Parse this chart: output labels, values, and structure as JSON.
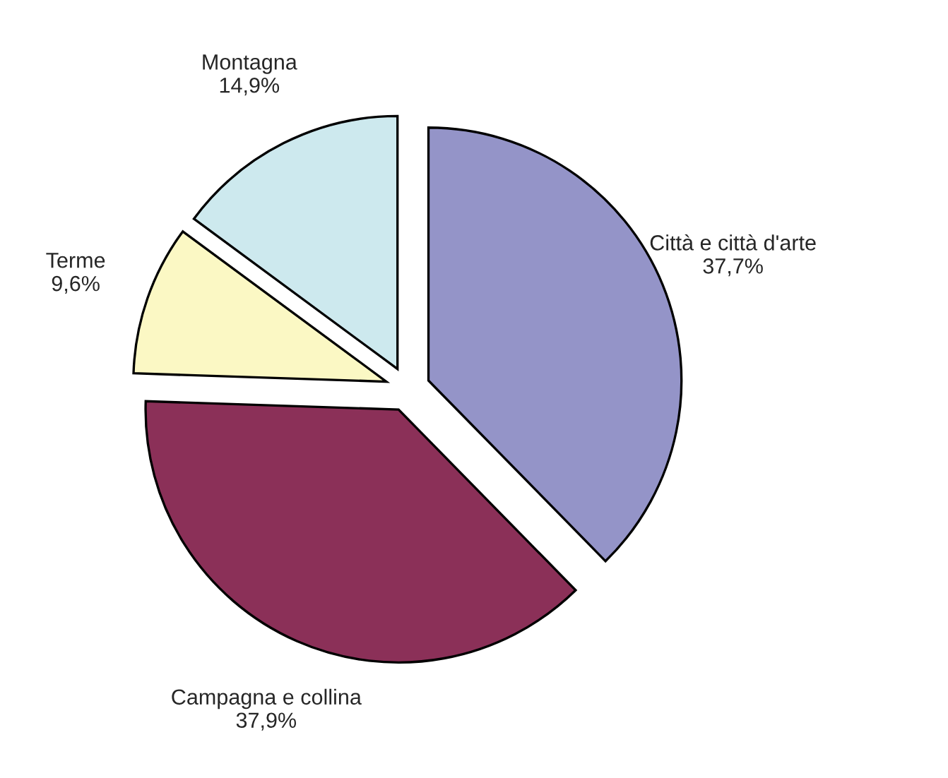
{
  "chart_data": {
    "type": "pie",
    "categories": [
      "Città e città d'arte",
      "Campagna e collina",
      "Terme",
      "Montagna"
    ],
    "values": [
      37.7,
      37.9,
      9.6,
      14.9
    ],
    "value_labels": [
      "37,7%",
      "37,9%",
      "9,6%",
      "14,9%"
    ],
    "colors": [
      "#9494c8",
      "#8b3058",
      "#fbf8c4",
      "#cde9ee"
    ],
    "legend": false
  }
}
